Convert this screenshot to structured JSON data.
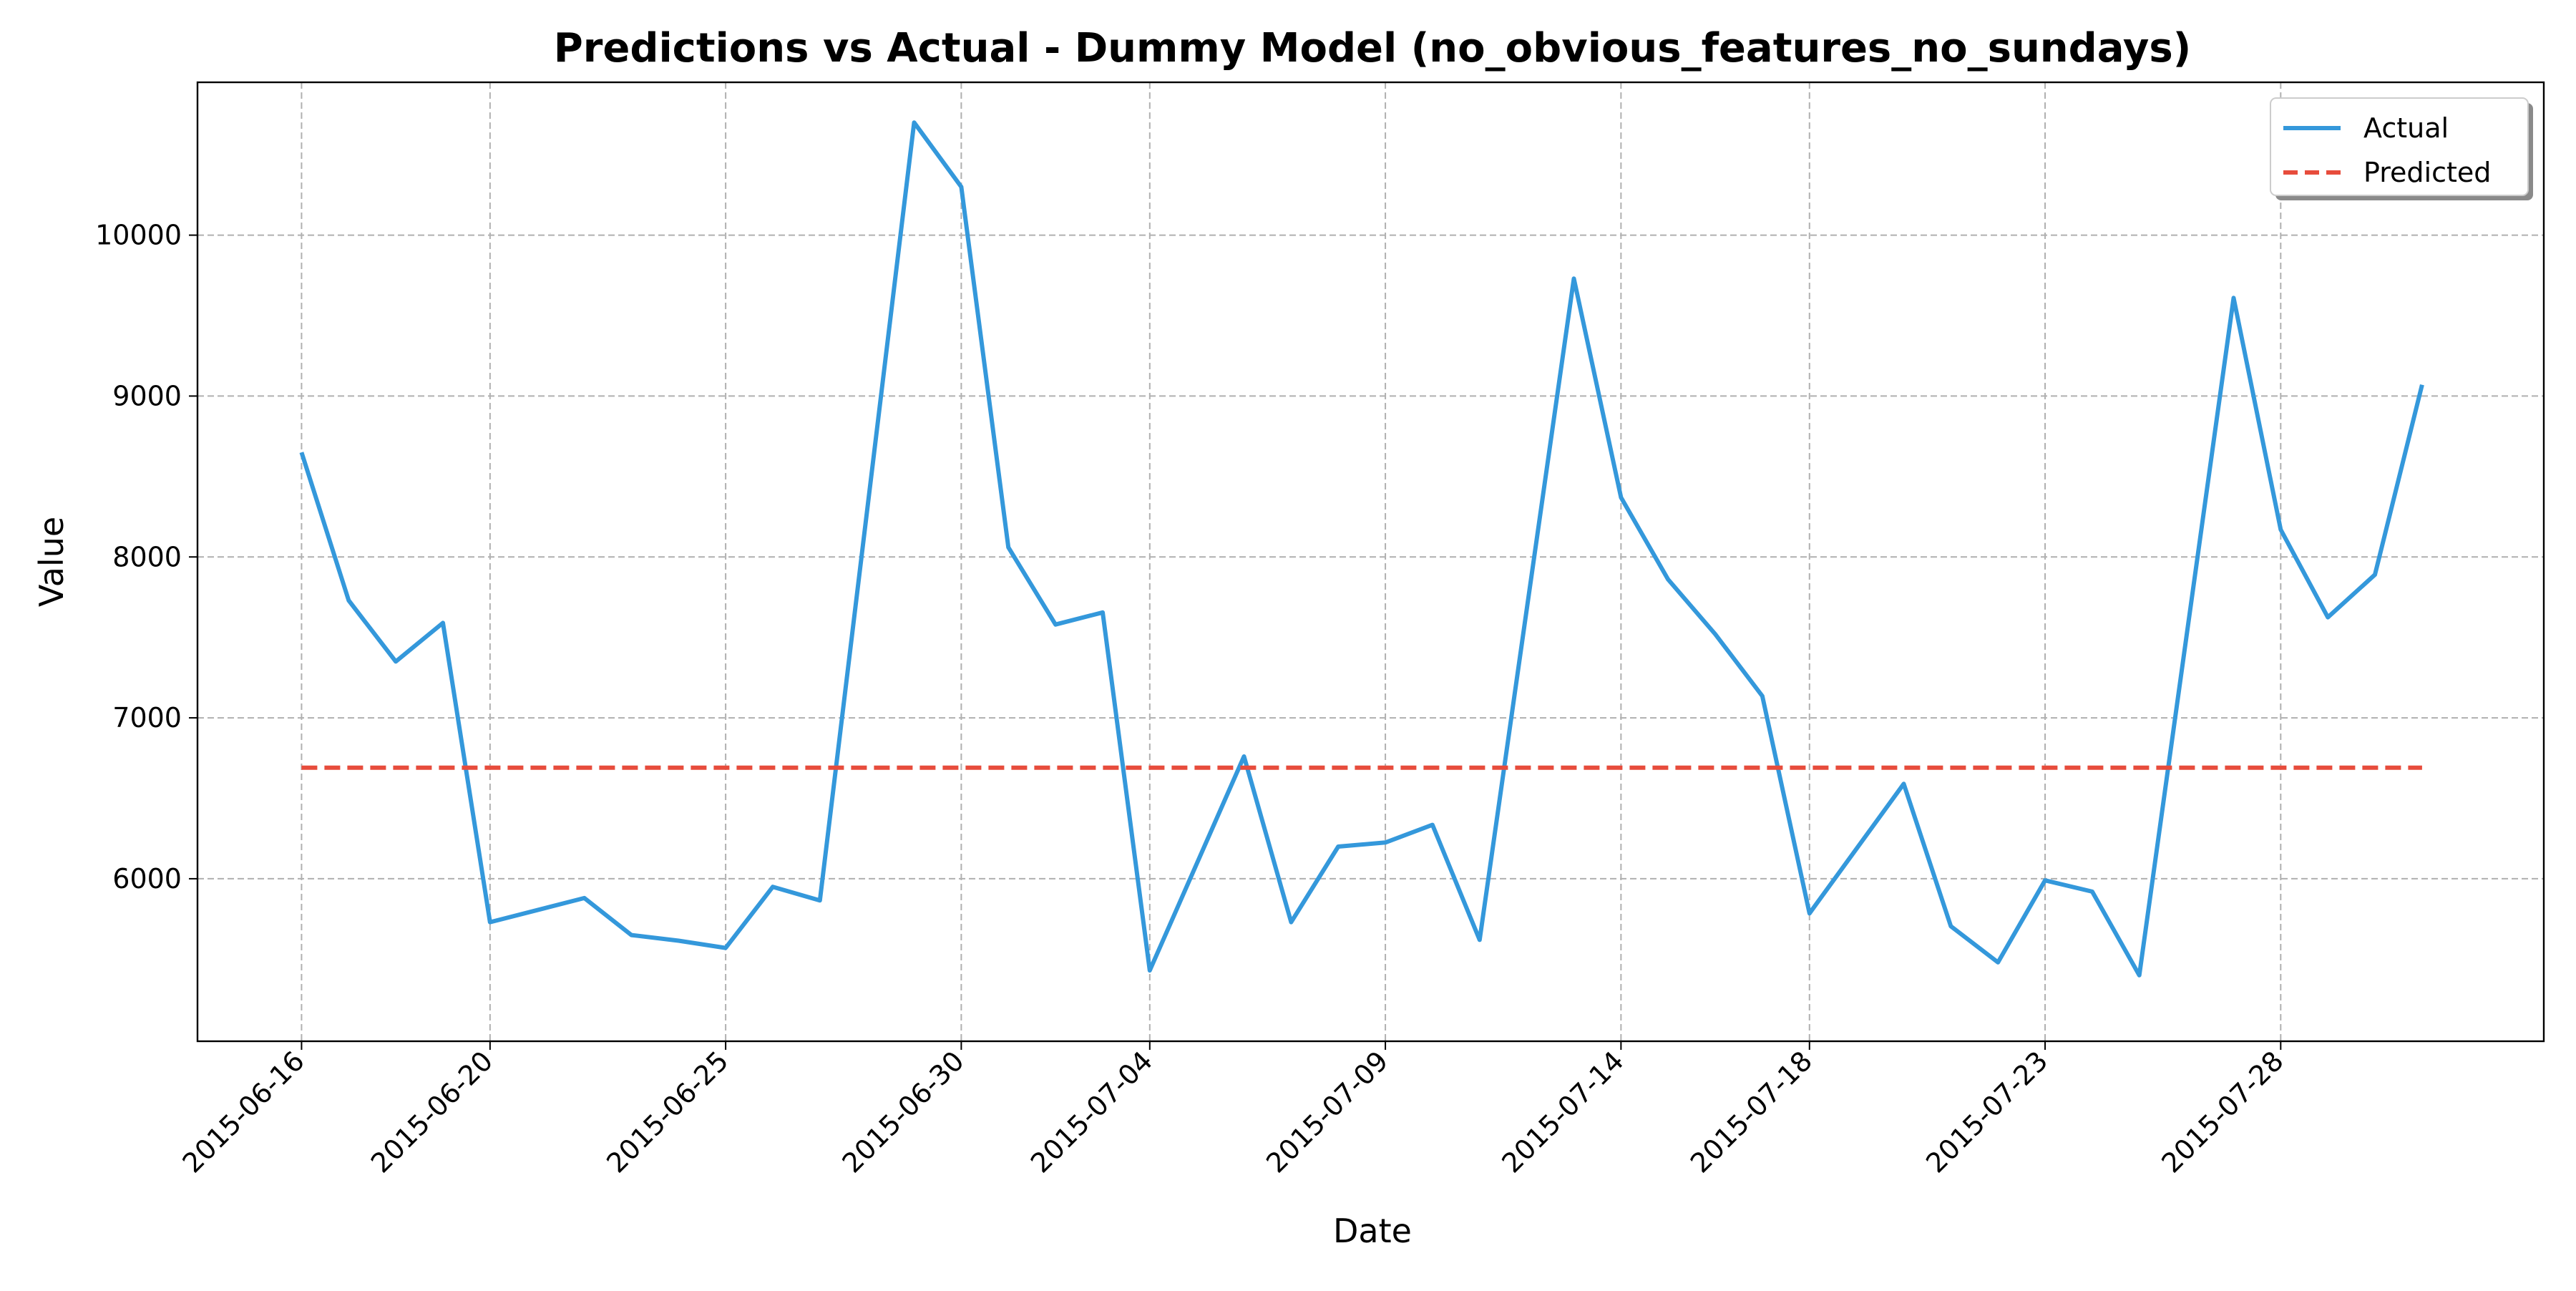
{
  "chart_data": {
    "type": "line",
    "title": "Predictions vs Actual - Dummy Model (no_obvious_features_no_sundays)",
    "xlabel": "Date",
    "ylabel": "Value",
    "x_tick_labels": [
      "2015-06-16",
      "2015-06-20",
      "2015-06-25",
      "2015-06-30",
      "2015-07-04",
      "2015-07-09",
      "2015-07-14",
      "2015-07-18",
      "2015-07-23",
      "2015-07-28"
    ],
    "y_ticks": [
      6000,
      7000,
      8000,
      9000,
      10000
    ],
    "xlim": [
      "2015-06-13 19:00",
      "2015-08-02 14:00"
    ],
    "ylim": [
      4990,
      10950
    ],
    "grid": true,
    "legend_position": "top-right",
    "series": [
      {
        "name": "Actual",
        "color": "#3498db",
        "style": "solid",
        "points": [
          [
            "2015-06-16",
            8650
          ],
          [
            "2015-06-17",
            7730
          ],
          [
            "2015-06-18",
            7350
          ],
          [
            "2015-06-19",
            7590
          ],
          [
            "2015-06-20",
            5730
          ],
          [
            "2015-06-22",
            5880
          ],
          [
            "2015-06-23",
            5650
          ],
          [
            "2015-06-24",
            5615
          ],
          [
            "2015-06-25",
            5570
          ],
          [
            "2015-06-26",
            5950
          ],
          [
            "2015-06-27",
            5865
          ],
          [
            "2015-06-29",
            10700
          ],
          [
            "2015-06-30",
            10300
          ],
          [
            "2015-07-01",
            8060
          ],
          [
            "2015-07-02",
            7580
          ],
          [
            "2015-07-03",
            7655
          ],
          [
            "2015-07-04",
            5430
          ],
          [
            "2015-07-06",
            6760
          ],
          [
            "2015-07-07",
            5730
          ],
          [
            "2015-07-08",
            6200
          ],
          [
            "2015-07-09",
            6225
          ],
          [
            "2015-07-10",
            6335
          ],
          [
            "2015-07-11",
            5620
          ],
          [
            "2015-07-13",
            9730
          ],
          [
            "2015-07-14",
            8370
          ],
          [
            "2015-07-15",
            7860
          ],
          [
            "2015-07-16",
            7520
          ],
          [
            "2015-07-17",
            7135
          ],
          [
            "2015-07-18",
            5785
          ],
          [
            "2015-07-20",
            6590
          ],
          [
            "2015-07-21",
            5705
          ],
          [
            "2015-07-22",
            5480
          ],
          [
            "2015-07-23",
            5990
          ],
          [
            "2015-07-24",
            5920
          ],
          [
            "2015-07-25",
            5400
          ],
          [
            "2015-07-27",
            9610
          ],
          [
            "2015-07-28",
            8170
          ],
          [
            "2015-07-29",
            7625
          ],
          [
            "2015-07-30",
            7890
          ],
          [
            "2015-07-31",
            9070
          ]
        ]
      },
      {
        "name": "Predicted",
        "color": "#e74c3c",
        "style": "dashed",
        "points": [
          [
            "2015-06-16",
            6690
          ],
          [
            "2015-07-31",
            6690
          ]
        ]
      }
    ]
  }
}
